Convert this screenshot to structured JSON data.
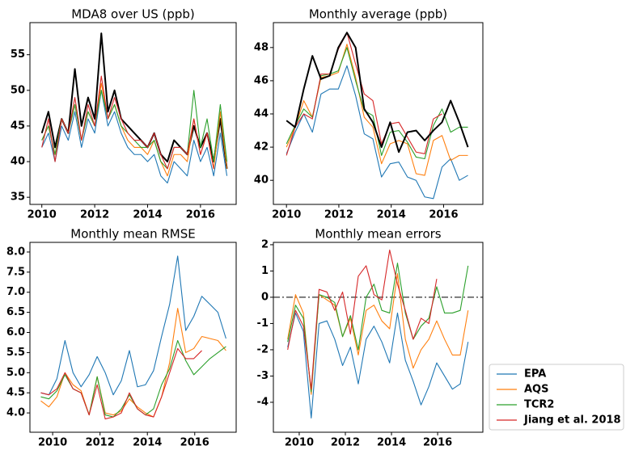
{
  "chart_data": [
    {
      "type": "line",
      "title": "MDA8 over US (ppb)",
      "x": [
        2010,
        2010.25,
        2010.5,
        2010.75,
        2011,
        2011.25,
        2011.5,
        2011.75,
        2012,
        2012.25,
        2012.5,
        2012.75,
        2013,
        2013.25,
        2013.5,
        2013.75,
        2014,
        2014.25,
        2014.5,
        2014.75,
        2015,
        2015.25,
        2015.5,
        2015.75,
        2016,
        2016.25,
        2016.5,
        2016.75,
        2017
      ],
      "series": [
        {
          "color": "#000000",
          "linewidth": 2,
          "values": [
            44,
            47,
            42,
            46,
            44,
            53,
            45,
            49,
            46,
            58,
            47,
            50,
            46,
            45,
            44,
            43,
            42,
            44,
            41,
            40,
            43,
            42,
            41,
            45,
            42,
            44,
            40,
            46,
            39
          ]
        },
        {
          "color": "#1f77b4",
          "values": [
            42,
            44,
            40,
            45,
            43,
            47,
            42,
            46,
            44,
            50,
            45,
            47,
            44,
            42,
            41,
            41,
            40,
            41,
            38,
            37,
            40,
            39,
            38,
            43,
            40,
            42,
            38,
            44,
            38
          ]
        },
        {
          "color": "#ff7f0e",
          "values": [
            43,
            45,
            41,
            46,
            44,
            48,
            43,
            47,
            45,
            51,
            46,
            48,
            45,
            43,
            42,
            42,
            41,
            43,
            40,
            38,
            41,
            41,
            40,
            46,
            41,
            44,
            39,
            47,
            39
          ]
        },
        {
          "color": "#2ca02c",
          "values": [
            43,
            45,
            41,
            46,
            44,
            48,
            43,
            47,
            45,
            50,
            46,
            48,
            45,
            44,
            43,
            42,
            42,
            43,
            40,
            39,
            42,
            42,
            41,
            50,
            42,
            46,
            40,
            48,
            40
          ]
        },
        {
          "color": "#d62728",
          "values": [
            42,
            46,
            40,
            46,
            44,
            49,
            43,
            48,
            45,
            52,
            46,
            49,
            46,
            44,
            43,
            43,
            42,
            44,
            41,
            39,
            42,
            42,
            41,
            46,
            41,
            44,
            39,
            null,
            null
          ]
        }
      ],
      "xlim": [
        2009.55,
        2017.35
      ],
      "xticks": [
        2010,
        2012,
        2014,
        2016
      ],
      "ylim": [
        34,
        59.5
      ],
      "yticks": [
        35,
        40,
        45,
        50,
        55
      ]
    },
    {
      "type": "line",
      "title": "Monthly average (ppb)",
      "x": [
        2010,
        2010.33,
        2010.66,
        2010.99,
        2011.32,
        2011.65,
        2011.98,
        2012.31,
        2012.64,
        2012.97,
        2013.3,
        2013.63,
        2013.96,
        2014.29,
        2014.62,
        2014.95,
        2015.28,
        2015.61,
        2015.94,
        2016.27,
        2016.6,
        2016.93
      ],
      "series": [
        {
          "color": "#1f77b4",
          "values": [
            41.6,
            42.9,
            44.0,
            42.9,
            45.2,
            45.5,
            45.5,
            46.9,
            45.1,
            42.8,
            42.5,
            40.2,
            41.0,
            41.1,
            40.2,
            40.0,
            39.0,
            38.9,
            40.8,
            41.3,
            40.0,
            40.3
          ]
        },
        {
          "color": "#ff7f0e",
          "values": [
            42.0,
            43.2,
            44.8,
            43.8,
            46.2,
            46.3,
            46.5,
            48.2,
            46.2,
            43.8,
            43.2,
            41.0,
            42.2,
            42.4,
            42.2,
            40.4,
            40.3,
            42.4,
            42.7,
            41.2,
            41.5,
            41.5
          ]
        },
        {
          "color": "#2ca02c",
          "values": [
            42.2,
            43.3,
            44.3,
            43.8,
            46.3,
            46.4,
            46.6,
            48.0,
            46.0,
            44.2,
            43.9,
            41.5,
            42.9,
            43.0,
            42.3,
            41.4,
            41.3,
            43.3,
            44.3,
            42.9,
            43.2,
            43.2
          ]
        },
        {
          "color": "#d62728",
          "values": [
            41.5,
            43.2,
            44.0,
            43.7,
            46.4,
            46.4,
            47.9,
            48.9,
            47.0,
            45.2,
            44.8,
            42.2,
            43.4,
            43.5,
            42.6,
            41.7,
            41.6,
            43.7,
            44.0,
            null,
            null,
            null
          ]
        },
        {
          "color": "#000000",
          "linewidth": 2,
          "values": [
            43.6,
            43.2,
            45.5,
            47.5,
            46.1,
            46.3,
            48.0,
            48.9,
            48.0,
            44.3,
            43.5,
            42.0,
            43.5,
            41.7,
            42.9,
            43.0,
            42.4,
            43.0,
            43.5,
            44.8,
            43.5,
            42.0
          ]
        }
      ],
      "xlim": [
        2009.5,
        2017.5
      ],
      "xticks": [
        2010,
        2012,
        2014,
        2016
      ],
      "ylim": [
        38.55,
        49.5
      ],
      "yticks": [
        40,
        42,
        44,
        46,
        48
      ]
    },
    {
      "type": "line",
      "title": "Monthly mean RMSE",
      "x": [
        2009.5,
        2009.84,
        2010.18,
        2010.52,
        2010.86,
        2011.2,
        2011.54,
        2011.88,
        2012.22,
        2012.56,
        2012.9,
        2013.24,
        2013.58,
        2013.92,
        2014.26,
        2014.6,
        2014.94,
        2015.28,
        2015.62,
        2015.96,
        2016.3,
        2016.64,
        2016.98,
        2017.32
      ],
      "series": [
        {
          "color": "#1f77b4",
          "values": [
            4.5,
            4.45,
            4.85,
            5.8,
            5.0,
            4.65,
            4.95,
            5.4,
            5.0,
            4.45,
            4.8,
            5.55,
            4.65,
            4.7,
            5.05,
            5.9,
            6.7,
            7.9,
            6.05,
            6.4,
            6.9,
            6.7,
            6.5,
            5.85
          ]
        },
        {
          "color": "#ff7f0e",
          "values": [
            4.3,
            4.15,
            4.4,
            5.0,
            4.7,
            4.55,
            3.95,
            4.9,
            4.0,
            3.95,
            4.05,
            4.35,
            4.15,
            4.0,
            3.9,
            4.4,
            5.25,
            6.6,
            5.5,
            5.6,
            5.9,
            5.85,
            5.8,
            5.55
          ]
        },
        {
          "color": "#2ca02c",
          "values": [
            4.4,
            4.35,
            4.55,
            4.95,
            4.6,
            4.5,
            3.95,
            4.9,
            3.95,
            3.9,
            4.1,
            4.45,
            4.1,
            3.95,
            4.1,
            4.7,
            5.1,
            5.8,
            5.3,
            4.95,
            5.15,
            5.35,
            5.5,
            5.65
          ]
        },
        {
          "color": "#d62728",
          "values": [
            4.5,
            4.45,
            4.6,
            5.0,
            4.6,
            4.5,
            3.95,
            4.7,
            3.85,
            3.9,
            4.0,
            4.5,
            4.1,
            3.95,
            3.9,
            4.4,
            5.0,
            5.6,
            5.35,
            5.35,
            5.55,
            null,
            null,
            null
          ]
        }
      ],
      "xlim": [
        2009.04,
        2017.75
      ],
      "xticks": [
        2010,
        2012,
        2014,
        2016
      ],
      "ylim": [
        3.52,
        8.24
      ],
      "yticks": [
        {
          "value": 4,
          "label": "4.0"
        },
        4.5,
        {
          "value": 5,
          "label": "5.0"
        },
        5.5,
        {
          "value": 6,
          "label": "6.0"
        },
        6.5,
        {
          "value": 7,
          "label": "7.0"
        },
        7.5,
        {
          "value": 8,
          "label": "8.0"
        }
      ]
    },
    {
      "type": "line",
      "title": "Monthly mean errors",
      "x": [
        2009.5,
        2009.84,
        2010.18,
        2010.52,
        2010.86,
        2011.2,
        2011.54,
        2011.88,
        2012.22,
        2012.56,
        2012.9,
        2013.24,
        2013.58,
        2013.92,
        2014.26,
        2014.6,
        2014.94,
        2015.28,
        2015.62,
        2015.96,
        2016.3,
        2016.64,
        2016.98,
        2017.32
      ],
      "series": [
        {
          "name": "EPA",
          "color": "#1f77b4",
          "values": [
            -1.9,
            -0.6,
            -1.3,
            -4.6,
            -1.0,
            -0.9,
            -1.6,
            -2.6,
            -1.9,
            -3.3,
            -1.6,
            -1.1,
            -1.7,
            -2.5,
            -0.6,
            -2.4,
            -3.2,
            -4.1,
            -3.4,
            -2.5,
            -3.0,
            -3.5,
            -3.3,
            -1.7
          ]
        },
        {
          "name": "AQS",
          "color": "#ff7f0e",
          "values": [
            -1.6,
            0.1,
            -0.6,
            -3.7,
            0.1,
            -0.1,
            -0.3,
            -1.5,
            -0.8,
            -2.2,
            -0.5,
            -0.3,
            -0.9,
            -1.2,
            0.9,
            -1.6,
            -2.7,
            -2.0,
            -1.6,
            -0.9,
            -1.6,
            -2.2,
            -2.2,
            -0.5
          ]
        },
        {
          "name": "TCR2",
          "color": "#2ca02c",
          "values": [
            -1.7,
            -0.3,
            -0.8,
            -3.6,
            0.1,
            0.0,
            -0.2,
            -1.5,
            -0.7,
            -2.0,
            0.0,
            0.5,
            -0.5,
            -0.6,
            1.3,
            -0.6,
            -1.6,
            -1.1,
            -0.8,
            0.4,
            -0.6,
            -0.6,
            -0.5,
            1.2
          ]
        },
        {
          "name": "Jiang et al. 2018",
          "color": "#d62728",
          "values": [
            -2.0,
            -0.5,
            -1.1,
            -3.5,
            0.3,
            0.2,
            -0.5,
            0.2,
            -1.4,
            0.8,
            1.2,
            0.1,
            -0.1,
            1.8,
            0.5,
            -0.5,
            -1.6,
            -0.8,
            -1.0,
            0.7,
            null,
            null,
            null,
            null
          ]
        }
      ],
      "hline": 0,
      "xlim": [
        2008.88,
        2017.96
      ],
      "xticks": [
        2010,
        2012,
        2014,
        2016
      ],
      "ylim": [
        -5.14,
        2.09
      ],
      "yticks": [
        -4,
        -3,
        -2,
        -1,
        0,
        1,
        2
      ],
      "legend": "outside lower right"
    }
  ]
}
